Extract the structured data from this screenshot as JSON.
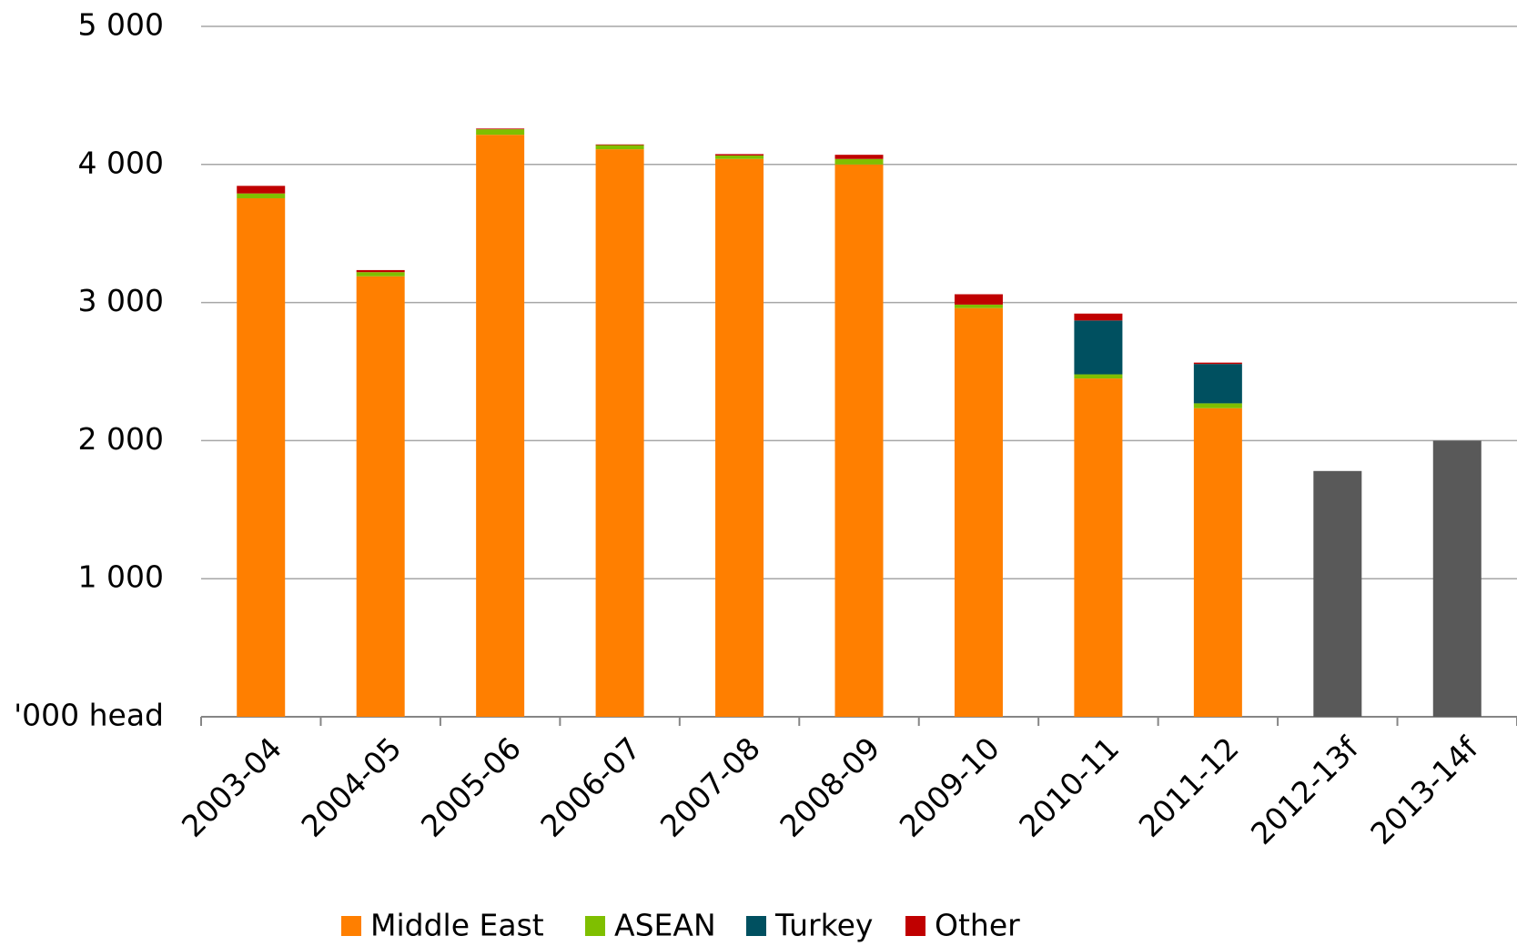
{
  "chart_data": {
    "type": "stacked_bar",
    "y_label": "'000 head",
    "categories": [
      "2003-04",
      "2004-05",
      "2005-06",
      "2006-07",
      "2007-08",
      "2008-09",
      "2009-10",
      "2010-11",
      "2011-12",
      "2012-13f",
      "2013-14f"
    ],
    "series": [
      {
        "name": "Middle East",
        "color": "#ff7f00",
        "values": [
          3755,
          3190,
          4215,
          4110,
          4040,
          4000,
          2960,
          2450,
          2235,
          null,
          null
        ]
      },
      {
        "name": "ASEAN",
        "color": "#7fbf00",
        "values": [
          35,
          30,
          40,
          30,
          25,
          40,
          25,
          30,
          35,
          null,
          null
        ]
      },
      {
        "name": "Turkey",
        "color": "#005060",
        "values": [
          0,
          0,
          0,
          0,
          0,
          0,
          0,
          390,
          285,
          null,
          null
        ]
      },
      {
        "name": "Other",
        "color": "#c00000",
        "values": [
          55,
          15,
          5,
          5,
          10,
          30,
          75,
          50,
          10,
          null,
          null
        ]
      }
    ],
    "forecast_color": "#595959",
    "forecast_values": [
      null,
      null,
      null,
      null,
      null,
      null,
      null,
      null,
      null,
      1780,
      2000
    ],
    "ylim": [
      0,
      5000
    ],
    "yticks": [
      {
        "value": 1000,
        "label": "1 000"
      },
      {
        "value": 2000,
        "label": "2 000"
      },
      {
        "value": 3000,
        "label": "3 000"
      },
      {
        "value": 4000,
        "label": "4 000"
      },
      {
        "value": 5000,
        "label": "5 000"
      }
    ],
    "grid": true
  }
}
